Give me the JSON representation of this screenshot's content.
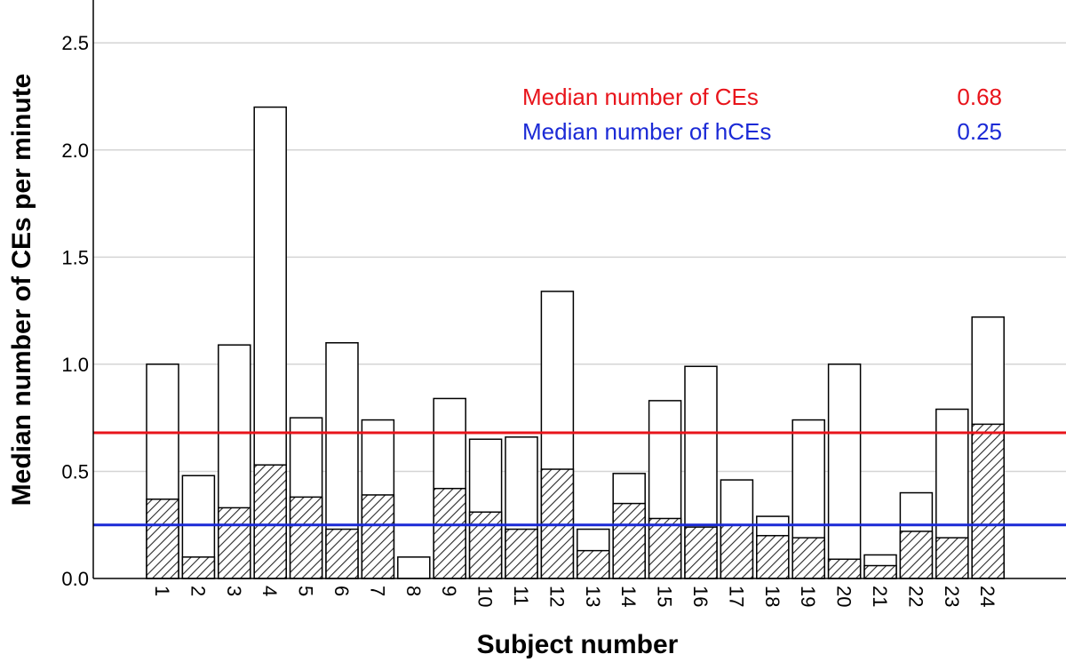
{
  "chart_data": {
    "type": "bar",
    "stacked": true,
    "xlabel": "Subject number",
    "ylabel": "Median number of CEs per minute",
    "ylim": [
      0,
      2.7
    ],
    "yticks": [
      0.0,
      0.5,
      1.0,
      1.5,
      2.0,
      2.5
    ],
    "ytick_labels": [
      "0.0",
      "0.5",
      "1.0",
      "1.5",
      "2.0",
      "2.5"
    ],
    "grid": "horizontal",
    "categories": [
      "1",
      "2",
      "3",
      "4",
      "5",
      "6",
      "7",
      "8",
      "9",
      "10",
      "11",
      "12",
      "13",
      "14",
      "15",
      "16",
      "17",
      "18",
      "19",
      "20",
      "21",
      "22",
      "23",
      "24"
    ],
    "series": [
      {
        "values": [
          0.37,
          0.1,
          0.33,
          0.53,
          0.38,
          0.23,
          0.39,
          0.0,
          0.42,
          0.31,
          0.23,
          0.51,
          0.13,
          0.35,
          0.28,
          0.24,
          0.25,
          0.2,
          0.19,
          0.09,
          0.06,
          0.22,
          0.19,
          0.72
        ],
        "pattern": "hatched"
      },
      {
        "values": [
          1.0,
          0.48,
          1.09,
          2.2,
          0.75,
          1.1,
          0.74,
          0.1,
          0.84,
          0.65,
          0.66,
          1.34,
          0.23,
          0.49,
          0.83,
          0.99,
          0.46,
          0.29,
          0.74,
          1.0,
          0.11,
          0.4,
          0.79,
          1.22
        ],
        "pattern": "white"
      }
    ],
    "reference_lines": [
      {
        "label": "Median number of CEs",
        "value_label": "0.68",
        "value": 0.68,
        "color": "#e8141b"
      },
      {
        "label": "Median number of hCEs",
        "value_label": "0.25",
        "value": 0.25,
        "color": "#1b2ad6"
      }
    ],
    "legend": "top-right"
  }
}
